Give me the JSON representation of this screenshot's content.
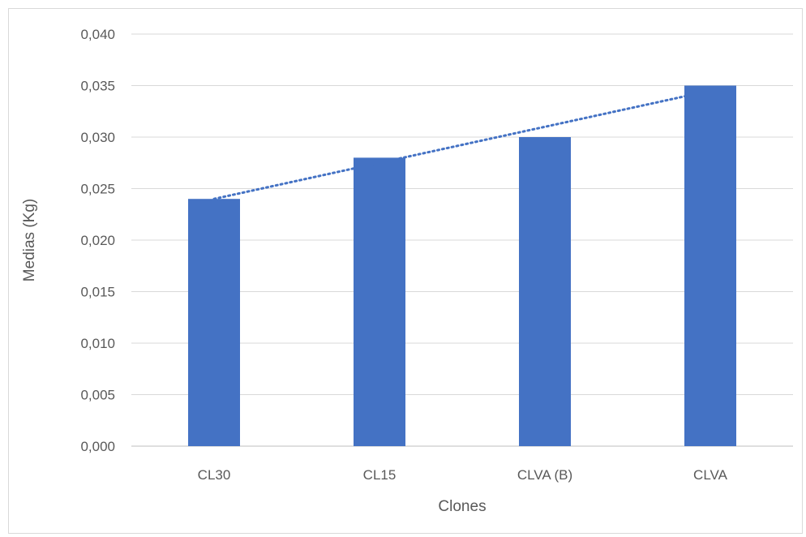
{
  "chart_data": {
    "type": "bar",
    "categories": [
      "CL30",
      "CL15",
      "CLVA (B)",
      "CLVA"
    ],
    "values": [
      0.024,
      0.028,
      0.03,
      0.035
    ],
    "title": "",
    "xlabel": "Clones",
    "ylabel": "Medias (Kg)",
    "ylim": [
      0,
      0.04
    ],
    "yticks": [
      "0,000",
      "0,005",
      "0,010",
      "0,015",
      "0,020",
      "0,025",
      "0,030",
      "0,035",
      "0,040"
    ],
    "grid": true,
    "legend": "none",
    "trendline": {
      "type": "linear",
      "style": "dotted"
    },
    "colors": {
      "bar": "#4472c4",
      "trendline": "#4472c4",
      "grid": "#d9d9d9",
      "text": "#595959"
    }
  }
}
